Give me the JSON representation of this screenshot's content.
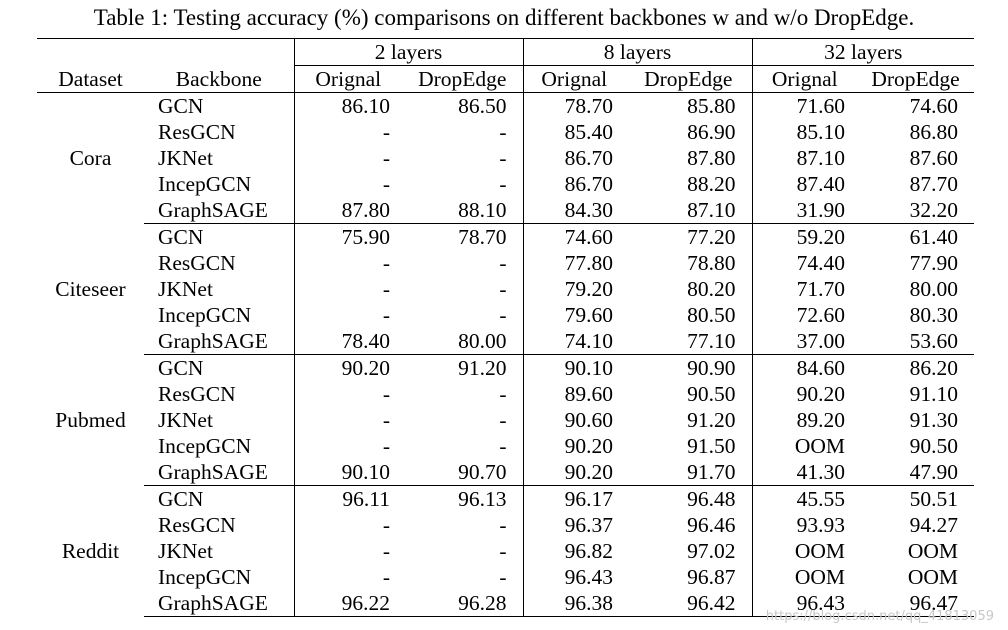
{
  "caption": "Table 1: Testing accuracy (%) comparisons on different backbones w and w/o DropEdge.",
  "header": {
    "dataset": "Dataset",
    "backbone": "Backbone",
    "groups": [
      "2 layers",
      "8 layers",
      "32 layers"
    ],
    "sub": [
      "Orignal",
      "DropEdge",
      "Orignal",
      "DropEdge",
      "Orignal",
      "DropEdge"
    ]
  },
  "datasets": [
    {
      "name": "Cora",
      "rows": [
        {
          "backbone": "GCN",
          "cells": [
            "86.10",
            "86.50",
            "78.70",
            "85.80",
            "71.60",
            "74.60"
          ]
        },
        {
          "backbone": "ResGCN",
          "cells": [
            "-",
            "-",
            "85.40",
            "86.90",
            "85.10",
            "86.80"
          ]
        },
        {
          "backbone": "JKNet",
          "cells": [
            "-",
            "-",
            "86.70",
            "87.80",
            "87.10",
            "87.60"
          ]
        },
        {
          "backbone": "IncepGCN",
          "cells": [
            "-",
            "-",
            "86.70",
            "88.20",
            "87.40",
            "87.70"
          ]
        },
        {
          "backbone": "GraphSAGE",
          "cells": [
            "87.80",
            "88.10",
            "84.30",
            "87.10",
            "31.90",
            "32.20"
          ]
        }
      ]
    },
    {
      "name": "Citeseer",
      "rows": [
        {
          "backbone": "GCN",
          "cells": [
            "75.90",
            "78.70",
            "74.60",
            "77.20",
            "59.20",
            "61.40"
          ]
        },
        {
          "backbone": "ResGCN",
          "cells": [
            "-",
            "-",
            "77.80",
            "78.80",
            "74.40",
            "77.90"
          ]
        },
        {
          "backbone": "JKNet",
          "cells": [
            "-",
            "-",
            "79.20",
            "80.20",
            "71.70",
            "80.00"
          ]
        },
        {
          "backbone": "IncepGCN",
          "cells": [
            "-",
            "-",
            "79.60",
            "80.50",
            "72.60",
            "80.30"
          ]
        },
        {
          "backbone": "GraphSAGE",
          "cells": [
            "78.40",
            "80.00",
            "74.10",
            "77.10",
            "37.00",
            "53.60"
          ]
        }
      ]
    },
    {
      "name": "Pubmed",
      "rows": [
        {
          "backbone": "GCN",
          "cells": [
            "90.20",
            "91.20",
            "90.10",
            "90.90",
            "84.60",
            "86.20"
          ]
        },
        {
          "backbone": "ResGCN",
          "cells": [
            "-",
            "-",
            "89.60",
            "90.50",
            "90.20",
            "91.10"
          ]
        },
        {
          "backbone": "JKNet",
          "cells": [
            "-",
            "-",
            "90.60",
            "91.20",
            "89.20",
            "91.30"
          ]
        },
        {
          "backbone": "IncepGCN",
          "cells": [
            "-",
            "-",
            "90.20",
            "91.50",
            "OOM",
            "90.50"
          ]
        },
        {
          "backbone": "GraphSAGE",
          "cells": [
            "90.10",
            "90.70",
            "90.20",
            "91.70",
            "41.30",
            "47.90"
          ]
        }
      ]
    },
    {
      "name": "Reddit",
      "rows": [
        {
          "backbone": "GCN",
          "cells": [
            "96.11",
            "96.13",
            "96.17",
            "96.48",
            "45.55",
            "50.51"
          ]
        },
        {
          "backbone": "ResGCN",
          "cells": [
            "-",
            "-",
            "96.37",
            "96.46",
            "93.93",
            "94.27"
          ]
        },
        {
          "backbone": "JKNet",
          "cells": [
            "-",
            "-",
            "96.82",
            "97.02",
            "OOM",
            "OOM"
          ]
        },
        {
          "backbone": "IncepGCN",
          "cells": [
            "-",
            "-",
            "96.43",
            "96.87",
            "OOM",
            "OOM"
          ]
        },
        {
          "backbone": "GraphSAGE",
          "cells": [
            "96.22",
            "96.28",
            "96.38",
            "96.42",
            "96.43",
            "96.47"
          ]
        }
      ]
    }
  ],
  "watermark": "https://blog.csdn.net/qq_41813059"
}
